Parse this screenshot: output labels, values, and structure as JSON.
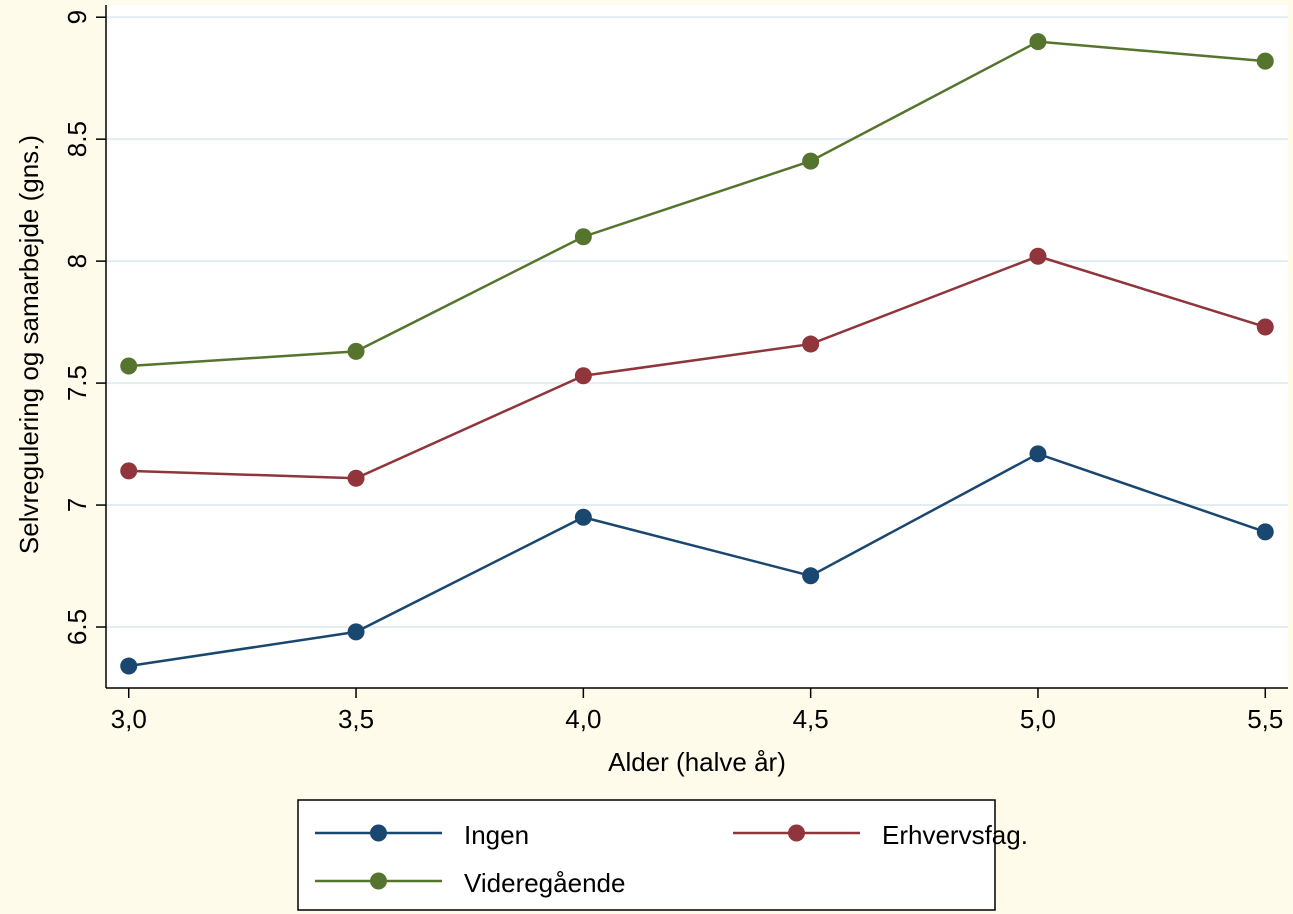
{
  "chart_data": {
    "type": "line",
    "title": "",
    "xlabel": "Alder (halve år)",
    "ylabel": "Selvregulering og samarbejde (gns.)",
    "x": [
      3.0,
      3.5,
      4.0,
      4.5,
      5.0,
      5.5
    ],
    "x_tick_labels": [
      "3,0",
      "3,5",
      "4,0",
      "4,5",
      "5,0",
      "5,5"
    ],
    "y_ticks": [
      6.5,
      7,
      7.5,
      8,
      8.5,
      9
    ],
    "y_tick_labels": [
      "6.5",
      "7",
      "7.5",
      "8",
      "8.5",
      "9"
    ],
    "xlim": [
      2.95,
      5.55
    ],
    "ylim": [
      6.25,
      9.05
    ],
    "grid": "horizontal",
    "legend_position": "bottom",
    "series": [
      {
        "name": "Ingen",
        "color": "#1a476f",
        "values": [
          6.34,
          6.48,
          6.95,
          6.71,
          7.21,
          6.89
        ]
      },
      {
        "name": "Erhvervsfag.",
        "color": "#90353b",
        "values": [
          7.14,
          7.11,
          7.53,
          7.66,
          8.02,
          7.73
        ]
      },
      {
        "name": "Videregående",
        "color": "#55752f",
        "values": [
          7.57,
          7.63,
          8.1,
          8.41,
          8.9,
          8.82
        ]
      }
    ]
  },
  "colors": {
    "outer_background": "#fffbea",
    "plot_background": "#ffffff",
    "grid": "#e3eef3",
    "axis": "#000000"
  }
}
